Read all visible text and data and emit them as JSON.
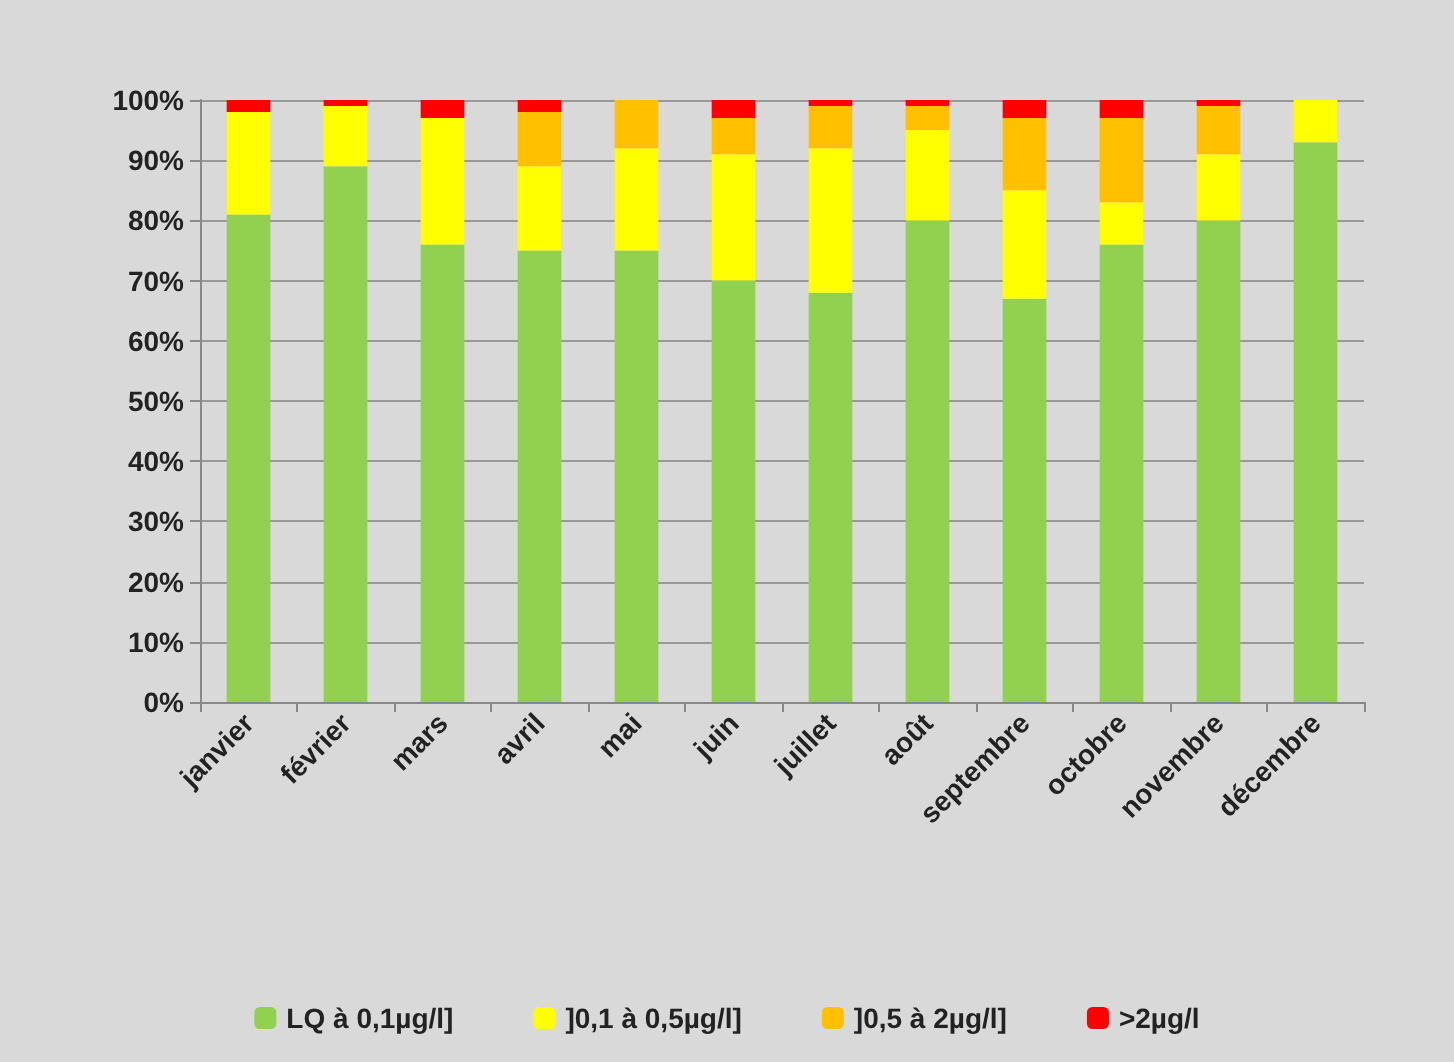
{
  "chart_data": {
    "type": "bar",
    "stacked": true,
    "categories": [
      "janvier",
      "février",
      "mars",
      "avril",
      "mai",
      "juin",
      "juillet",
      "août",
      "septembre",
      "octobre",
      "novembre",
      "décembre"
    ],
    "series": [
      {
        "name": "LQ à 0,1µg/l]",
        "color": "#92d050",
        "values": [
          81,
          89,
          76,
          75,
          75,
          70,
          68,
          80,
          67,
          76,
          80,
          93
        ]
      },
      {
        "name": "]0,1 à 0,5µg/l]",
        "color": "#ffff00",
        "values": [
          17,
          10,
          21,
          14,
          17,
          21,
          24,
          15,
          18,
          7,
          11,
          7
        ]
      },
      {
        "name": "]0,5 à 2µg/l]",
        "color": "#ffc000",
        "values": [
          0,
          0,
          0,
          9,
          8,
          6,
          7,
          4,
          12,
          14,
          8,
          0
        ]
      },
      {
        "name": ">2µg/l",
        "color": "#ff0000",
        "values": [
          2,
          1,
          3,
          2,
          0,
          3,
          1,
          1,
          3,
          3,
          1,
          0
        ]
      }
    ],
    "ylim": [
      0,
      100
    ],
    "yticks": [
      {
        "value": 0,
        "label": "0%"
      },
      {
        "value": 10,
        "label": "10%"
      },
      {
        "value": 20,
        "label": "20%"
      },
      {
        "value": 30,
        "label": "30%"
      },
      {
        "value": 40,
        "label": "40%"
      },
      {
        "value": 50,
        "label": "50%"
      },
      {
        "value": 60,
        "label": "60%"
      },
      {
        "value": 70,
        "label": "70%"
      },
      {
        "value": 80,
        "label": "80%"
      },
      {
        "value": 90,
        "label": "90%"
      },
      {
        "value": 100,
        "label": "100%"
      }
    ],
    "grid": "y",
    "legend": "bottom"
  }
}
